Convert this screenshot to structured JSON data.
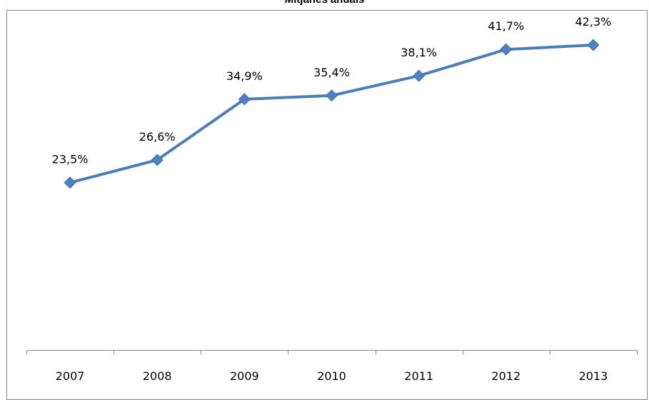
{
  "chart_data": {
    "type": "line",
    "title": "Mitjanes anuals",
    "xlabel": "",
    "ylabel": "",
    "categories": [
      "2007",
      "2008",
      "2009",
      "2010",
      "2011",
      "2012",
      "2013"
    ],
    "series": [
      {
        "values": [
          23.5,
          26.6,
          34.9,
          35.4,
          38.1,
          41.7,
          42.3
        ],
        "labels": [
          "23,5%",
          "26,6%",
          "34,9%",
          "35,4%",
          "38,1%",
          "41,7%",
          "42,3%"
        ],
        "color": "#4f81bd",
        "marker": "diamond"
      }
    ],
    "ylim": [
      0,
      50
    ],
    "y_axis_visible": false,
    "grid": false,
    "legend": "none"
  }
}
